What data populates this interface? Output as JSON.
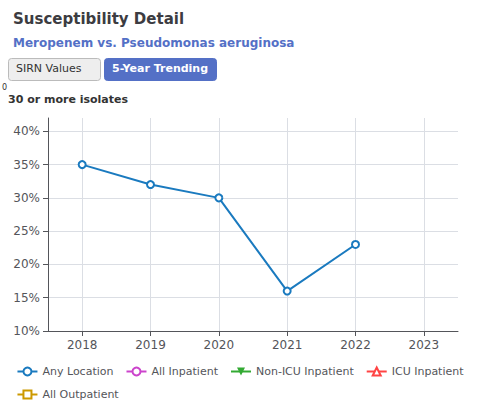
{
  "chart_data": {
    "type": "line",
    "title": "Susceptibility Detail",
    "subtitle": "Meropenem vs. Pseudomonas aeruginosa",
    "tabs": [
      "SIRN Values",
      "5-Year Trending"
    ],
    "annotations": [
      "0",
      "30 or more isolates"
    ],
    "x": [
      2018,
      2019,
      2020,
      2021,
      2022
    ],
    "series": [
      {
        "name": "Any Location",
        "color": "#1a7abf",
        "marker": "circle",
        "values": [
          35,
          32,
          30,
          16,
          23
        ]
      },
      {
        "name": "All Inpatient",
        "color": "#cc44cc",
        "marker": "circle",
        "values": [
          null,
          null,
          null,
          null,
          null
        ]
      },
      {
        "name": "Non-ICU Inpatient",
        "color": "#33aa33",
        "marker": "triangle-down",
        "values": [
          null,
          null,
          null,
          null,
          null
        ]
      },
      {
        "name": "ICU Inpatient",
        "color": "#ff4444",
        "marker": "triangle-up",
        "values": [
          null,
          null,
          null,
          null,
          null
        ]
      },
      {
        "name": "All Outpatient",
        "color": "#cc9900",
        "marker": "square",
        "values": [
          null,
          null,
          null,
          null,
          null
        ]
      }
    ],
    "xlim": [
      2017.5,
      2023.5
    ],
    "xticks": [
      2018,
      2019,
      2020,
      2021,
      2022,
      2023
    ],
    "ylim": [
      10,
      42
    ],
    "yticks": [
      {
        "value": 10,
        "label": "10%"
      },
      {
        "value": 15,
        "label": "15%"
      },
      {
        "value": 20,
        "label": "20%"
      },
      {
        "value": 25,
        "label": "25%"
      },
      {
        "value": 30,
        "label": "30%"
      },
      {
        "value": 35,
        "label": "35%"
      },
      {
        "value": 40,
        "label": "40%"
      }
    ],
    "grid": true,
    "legend": "bottom"
  }
}
